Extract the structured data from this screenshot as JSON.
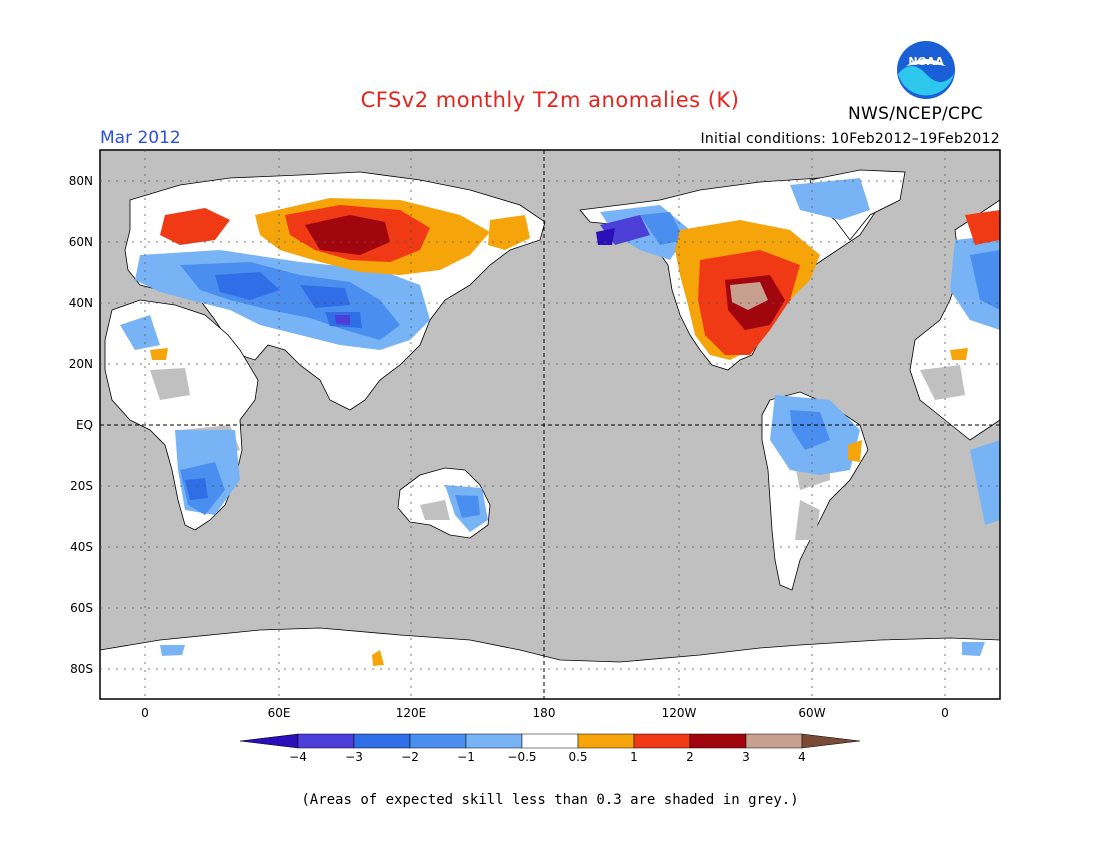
{
  "title": "CFSv2 monthly T2m anomalies (K)",
  "valid_month": "Mar 2012",
  "org": "NWS/NCEP/CPC",
  "logo_text": "NOAA",
  "initial_conditions": "Initial conditions: 10Feb2012–19Feb2012",
  "footnote": "(Areas of expected skill less than 0.3 are shaded in grey.)",
  "colors": {
    "title": "#e8231c",
    "month": "#2b50e0",
    "ocean_grey": "#c0c0c0",
    "land_low_skill": "#c0c0c0"
  },
  "lat_labels": [
    "80N",
    "60N",
    "40N",
    "20N",
    "EQ",
    "20S",
    "40S",
    "60S",
    "80S"
  ],
  "lon_labels": [
    "0",
    "60E",
    "120E",
    "180",
    "120W",
    "60W",
    "0"
  ],
  "colorbar": {
    "colors": [
      "#2a0eb8",
      "#4b3fd8",
      "#2f6ee6",
      "#4a8ff0",
      "#78b4f5",
      "#ffffff",
      "#f5a40a",
      "#f03a16",
      "#a1060e",
      "#c8a090",
      "#7a4a38"
    ],
    "labels": [
      "−4",
      "−3",
      "−2",
      "−1",
      "−0.5",
      "0.5",
      "1",
      "2",
      "3",
      "4"
    ]
  }
}
